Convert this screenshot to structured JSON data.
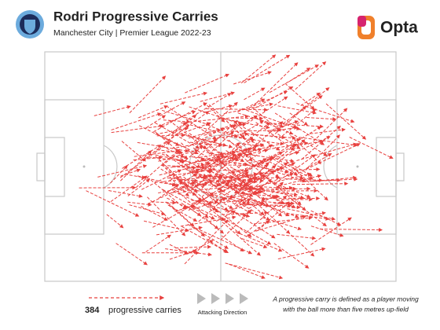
{
  "header": {
    "title": "Rodri Progressive Carries",
    "subtitle": "Manchester City | Premier League 2022-23",
    "brand": "Opta"
  },
  "carries": {
    "count": 384,
    "label": "progressive carries"
  },
  "direction": {
    "label": "Attacking Direction"
  },
  "definition": {
    "lines": [
      "A progressive carry is defined as a player moving",
      "with the ball more than five metres up-field"
    ]
  }
}
